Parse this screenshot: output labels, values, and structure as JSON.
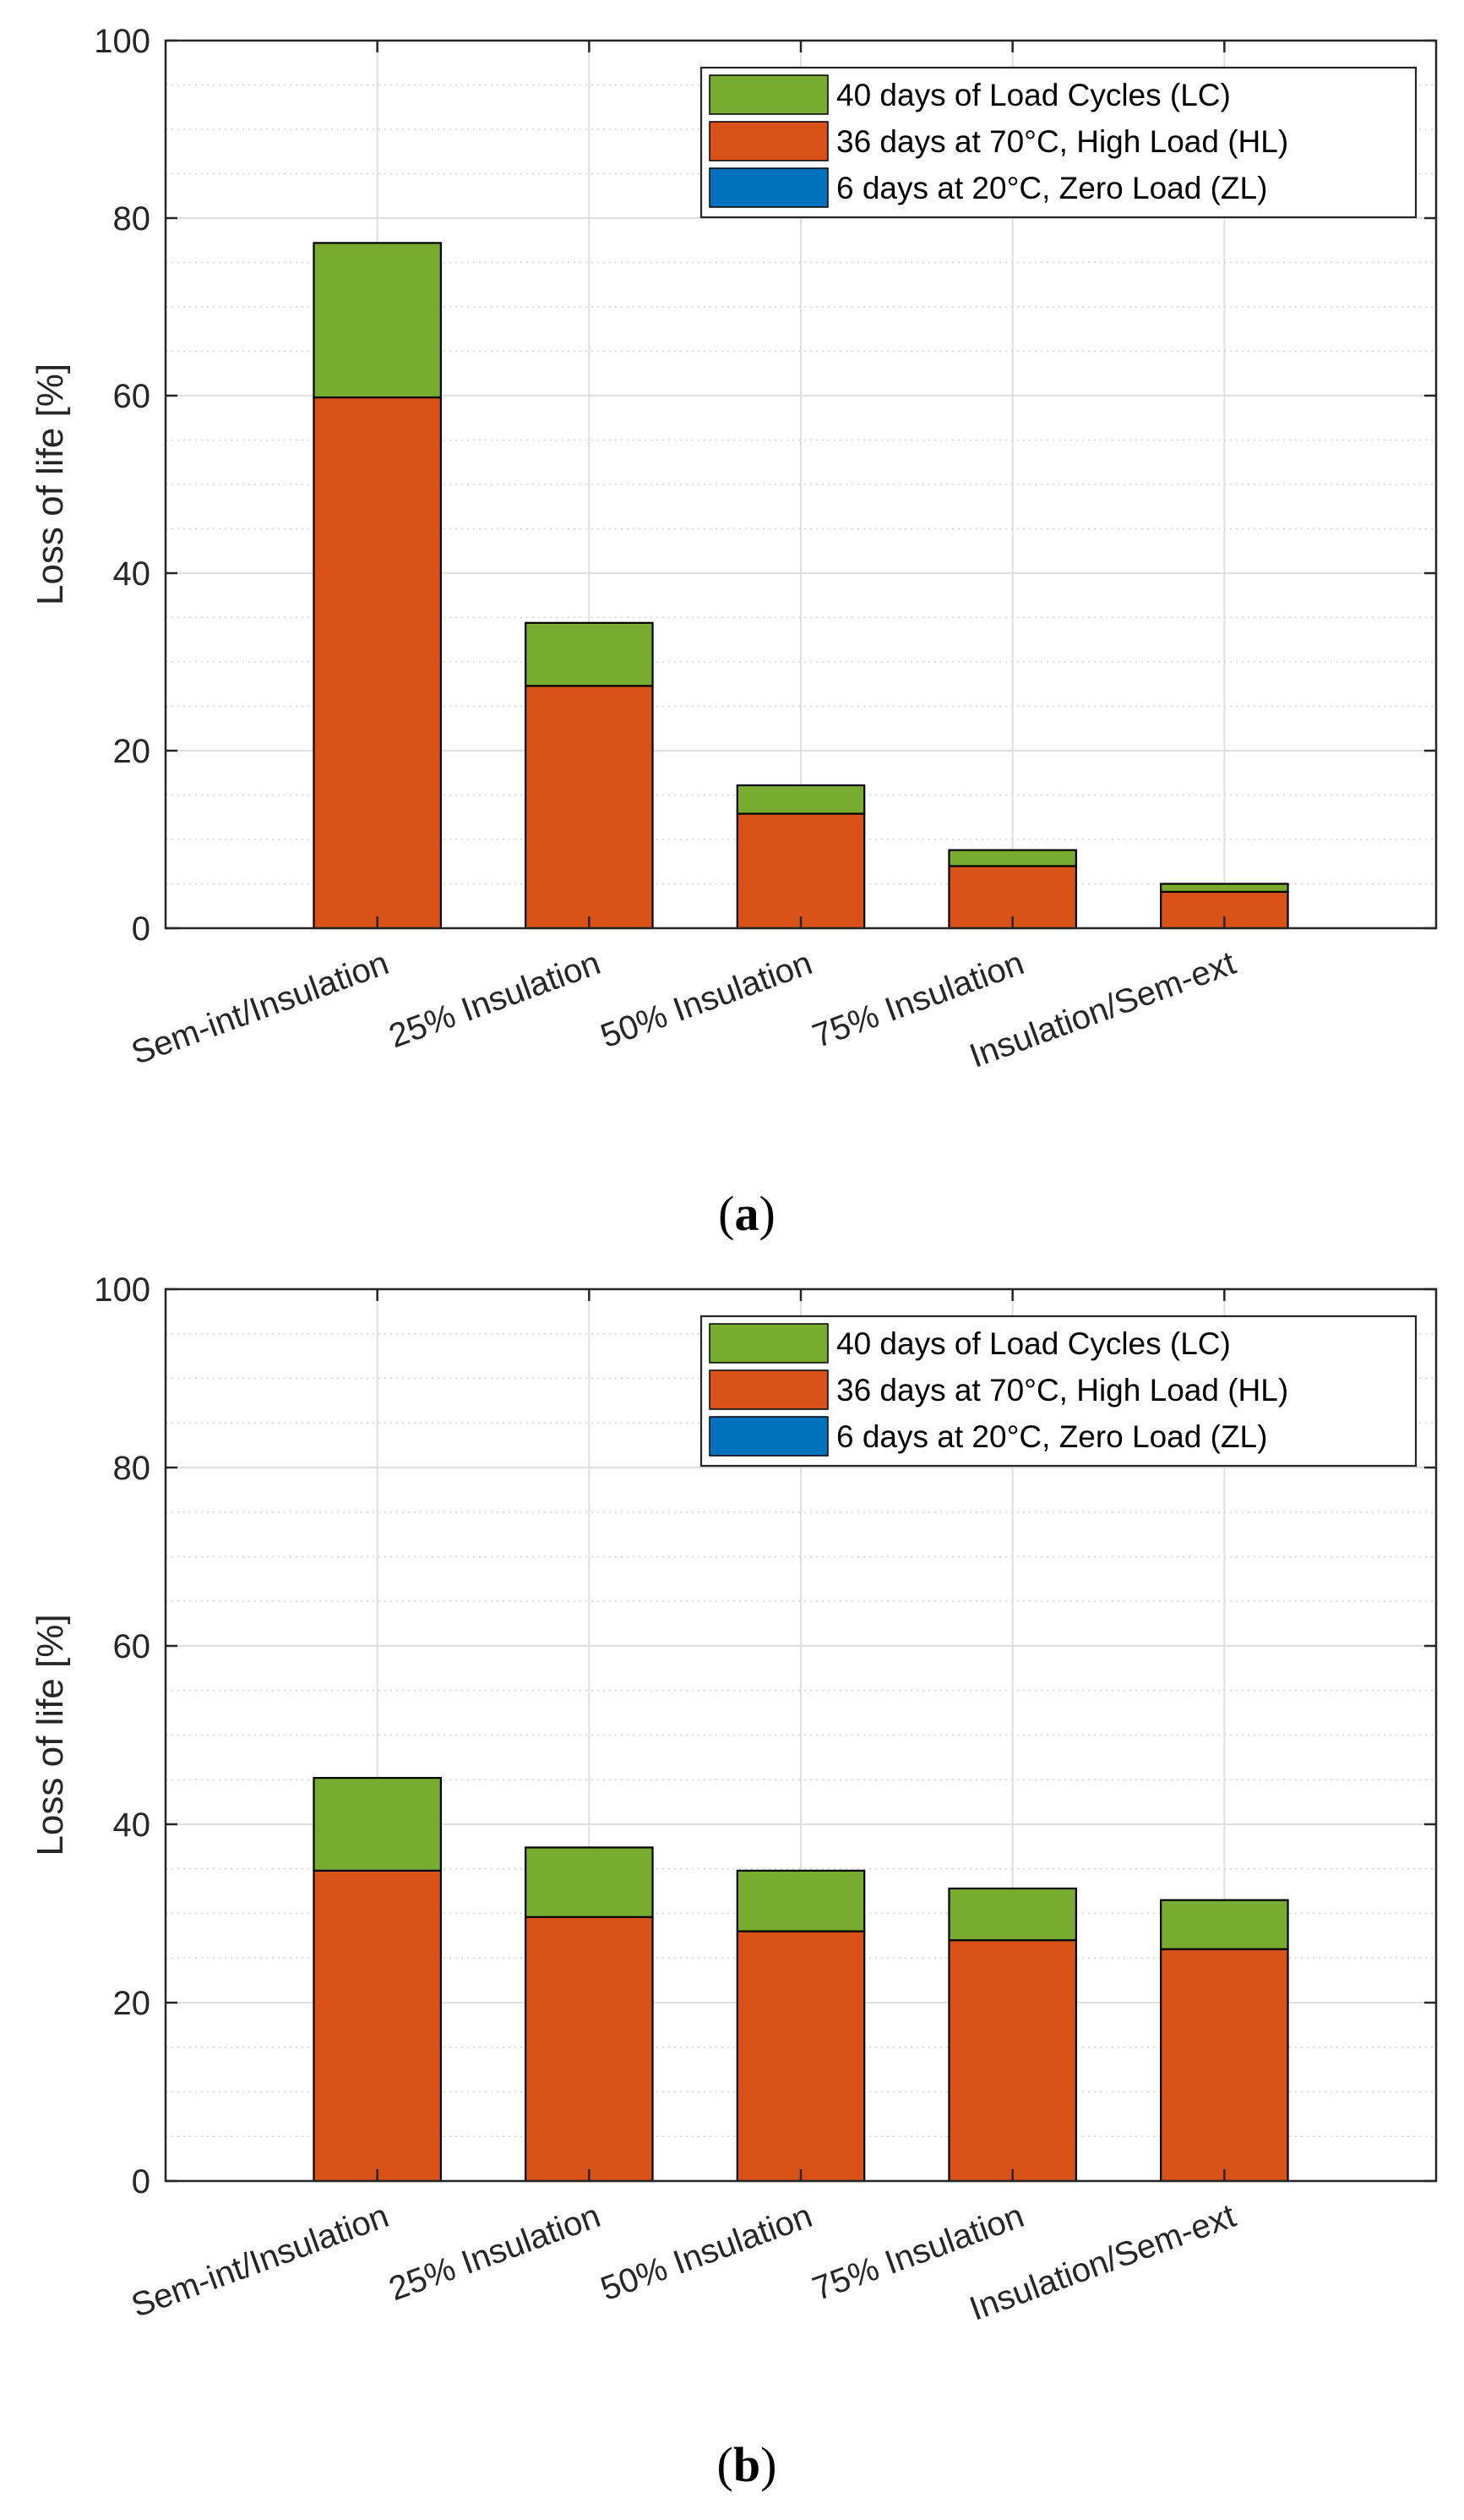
{
  "figure": {
    "colors": {
      "lc": "#77ac30",
      "hl": "#d95319",
      "zl": "#0072bd",
      "grid_major": "#dfdfdf",
      "grid_minor": "#d0d0d0",
      "axis": "#262626",
      "bar_edge": "#000000"
    }
  },
  "chart_data": [
    {
      "type": "bar",
      "stacked": true,
      "panel": "a",
      "caption_open": "(",
      "caption_letter": "a",
      "caption_close": ")",
      "title": "",
      "xlabel": "",
      "ylabel": "Loss of life [%]",
      "ylim": [
        0,
        100
      ],
      "yticks": [
        0,
        20,
        40,
        60,
        80,
        100
      ],
      "grid": true,
      "minor_grid": true,
      "legend_position": "top-right",
      "categories": [
        "Sem-int/Insulation",
        "25% Insulation",
        "50% Insulation",
        "75% Insulation",
        "Insulation/Sem-ext"
      ],
      "legend": [
        {
          "key": "lc",
          "label": "40 days of Load Cycles (LC)"
        },
        {
          "key": "hl",
          "label": "36 days at 70°C, High Load (HL)"
        },
        {
          "key": "zl",
          "label": "6 days at 20°C, Zero Load (ZL)"
        }
      ],
      "series": [
        {
          "key": "zl",
          "name": "6 days at 20°C, Zero Load (ZL)",
          "values": [
            0,
            0,
            0,
            0,
            0
          ]
        },
        {
          "key": "hl",
          "name": "36 days at 70°C, High Load (HL)",
          "values": [
            59.8,
            27.3,
            12.9,
            7.0,
            4.1
          ]
        },
        {
          "key": "lc",
          "name": "40 days of Load Cycles (LC)",
          "values": [
            17.4,
            7.1,
            3.2,
            1.8,
            0.9
          ]
        }
      ]
    },
    {
      "type": "bar",
      "stacked": true,
      "panel": "b",
      "caption_open": "(",
      "caption_letter": "b",
      "caption_close": ")",
      "title": "",
      "xlabel": "",
      "ylabel": "Loss of life [%]",
      "ylim": [
        0,
        100
      ],
      "yticks": [
        0,
        20,
        40,
        60,
        80,
        100
      ],
      "grid": true,
      "minor_grid": true,
      "legend_position": "top-right",
      "categories": [
        "Sem-int/Insulation",
        "25% Insulation",
        "50% Insulation",
        "75% Insulation",
        "Insulation/Sem-ext"
      ],
      "legend": [
        {
          "key": "lc",
          "label": "40 days of Load Cycles (LC)"
        },
        {
          "key": "hl",
          "label": "36 days at 70°C, High Load (HL)"
        },
        {
          "key": "zl",
          "label": "6 days at 20°C, Zero Load (ZL)"
        }
      ],
      "series": [
        {
          "key": "zl",
          "name": "6 days at 20°C, Zero Load (ZL)",
          "values": [
            0,
            0,
            0,
            0,
            0
          ]
        },
        {
          "key": "hl",
          "name": "36 days at 70°C, High Load (HL)",
          "values": [
            34.8,
            29.6,
            28.0,
            27.0,
            26.0
          ]
        },
        {
          "key": "lc",
          "name": "40 days of Load Cycles (LC)",
          "values": [
            10.4,
            7.8,
            6.8,
            5.8,
            5.5
          ]
        }
      ]
    }
  ]
}
